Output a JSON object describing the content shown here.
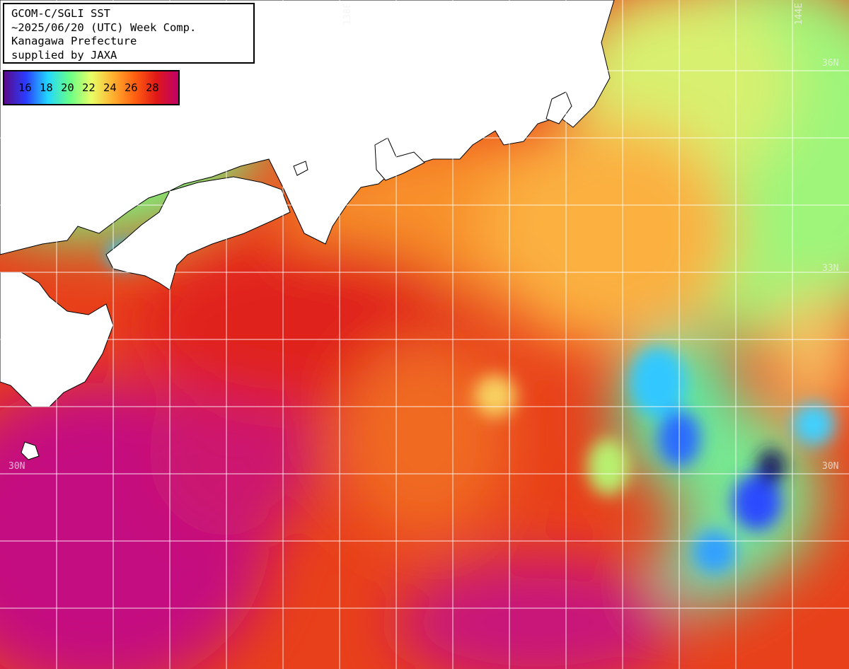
{
  "title": {
    "line1": "GCOM-C/SGLI SST",
    "line2": "~2025/06/20 (UTC) Week Comp.",
    "line3": "Kanagawa Prefecture",
    "line4": "supplied by JAXA"
  },
  "legend": {
    "labels": "16 18 20 22 24 26 28",
    "min": 16,
    "max": 28,
    "colors": [
      "#5a0a8a",
      "#2a3cff",
      "#22d6ff",
      "#66ff88",
      "#e8ff66",
      "#ffb030",
      "#ff6010",
      "#e01818",
      "#c00068"
    ]
  },
  "grid_labels": {
    "lat_36": "36N",
    "lat_33": "33N",
    "lat_30_left": "30N",
    "lat_30_right": "30N",
    "lon_138": "138E",
    "lon_144": "144E"
  },
  "colors": {
    "land": "#ffffff",
    "grid": "#ffffff",
    "warm_core": "#c8107a",
    "ocean": "#e8401a"
  }
}
